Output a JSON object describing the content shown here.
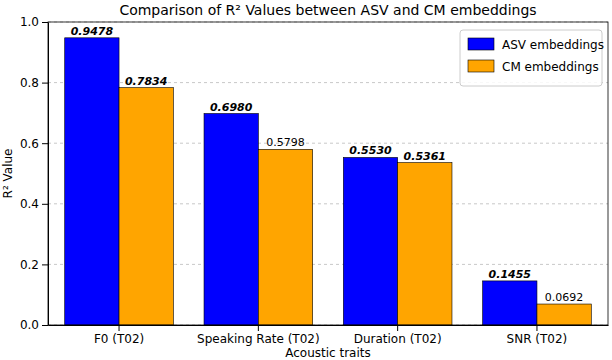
{
  "chart_data": {
    "type": "bar",
    "title": "Comparison of R² Values between ASV and CM embeddings",
    "x_label": "Acoustic traits",
    "y_label": "R² Value",
    "categories": [
      "F0 (T02)",
      "Speaking Rate (T02)",
      "Duration (T02)",
      "SNR (T02)"
    ],
    "series": [
      {
        "name": "ASV embeddings",
        "color": "#0000ff",
        "values": [
          0.9478,
          0.698,
          0.553,
          0.1455
        ],
        "value_labels": [
          "0.9478",
          "0.6980",
          "0.5530",
          "0.1455"
        ]
      },
      {
        "name": "CM embeddings",
        "color": "#ffa500",
        "values": [
          0.7834,
          0.5798,
          0.5361,
          0.0692
        ],
        "value_labels": [
          "0.7834",
          "0.5798",
          "0.5361",
          "0.0692"
        ]
      }
    ],
    "ylim": [
      0,
      1
    ],
    "yticks": [
      {
        "value": 0,
        "label": "0.0"
      },
      {
        "value": 0.2,
        "label": "0.2"
      },
      {
        "value": 0.4,
        "label": "0.4"
      },
      {
        "value": 0.6,
        "label": "0.6"
      },
      {
        "value": 0.8,
        "label": "0.8"
      },
      {
        "value": 1,
        "label": "1.0"
      }
    ],
    "grid": true,
    "legend": "upper right",
    "data_labels": true
  }
}
